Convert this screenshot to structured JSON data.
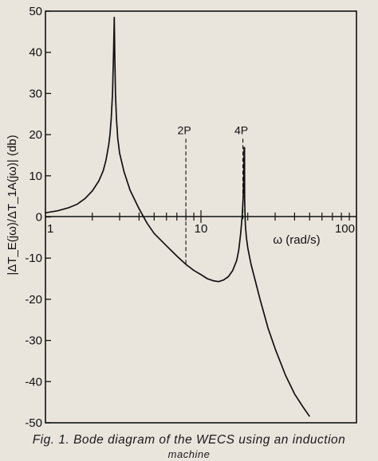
{
  "chart_data": {
    "type": "line",
    "title": "",
    "xlabel": "ω (rad/s)",
    "ylabel": "|ΔT_E(jω)/ΔT_1A(jω)| (db)",
    "xscale": "log",
    "xlim": [
      1,
      100
    ],
    "ylim": [
      -50,
      50
    ],
    "xtick_labels": [
      "1",
      "10",
      "100"
    ],
    "ytick_labels": [
      "50",
      "40",
      "30",
      "20",
      "10",
      "0",
      "-10",
      "-20",
      "-30",
      "-40",
      "-50"
    ],
    "annotations": [
      {
        "label": "2P",
        "x": 8,
        "y_from": 19,
        "y_to": -12
      },
      {
        "label": "4P",
        "x": 18.6,
        "y_from": 19,
        "y_to": -1
      }
    ],
    "series": [
      {
        "name": "",
        "segments": [
          [
            [
              1,
              1
            ],
            [
              1.2,
              1.5
            ],
            [
              1.4,
              2.2
            ],
            [
              1.6,
              3.1
            ],
            [
              1.8,
              4.5
            ],
            [
              2.0,
              6.3
            ],
            [
              2.2,
              8.7
            ],
            [
              2.35,
              11.2
            ],
            [
              2.45,
              13.8
            ],
            [
              2.55,
              17.5
            ],
            [
              2.6,
              20
            ],
            [
              2.65,
              24
            ],
            [
              2.7,
              30
            ],
            [
              2.74,
              40
            ],
            [
              2.77,
              48.5
            ],
            [
              2.79,
              40
            ],
            [
              2.82,
              30
            ],
            [
              2.86,
              24
            ],
            [
              2.92,
              19
            ],
            [
              3.0,
              15.5
            ],
            [
              3.2,
              11
            ],
            [
              3.5,
              6.5
            ],
            [
              4.0,
              2
            ],
            [
              4.5,
              -1.5
            ],
            [
              5.0,
              -4
            ],
            [
              6.0,
              -7
            ],
            [
              7.0,
              -9.5
            ],
            [
              8.0,
              -11.5
            ],
            [
              9.0,
              -13
            ],
            [
              10.0,
              -14
            ],
            [
              11.0,
              -15
            ],
            [
              12.0,
              -15.5
            ],
            [
              13.0,
              -15.7
            ],
            [
              14.0,
              -15.3
            ],
            [
              15.0,
              -14.5
            ],
            [
              16.0,
              -13
            ],
            [
              17.0,
              -10.5
            ],
            [
              17.5,
              -8
            ],
            [
              18.0,
              -4
            ],
            [
              18.4,
              0
            ],
            [
              18.7,
              5
            ],
            [
              18.85,
              10
            ],
            [
              18.95,
              17
            ]
          ],
          [
            [
              19.05,
              17
            ],
            [
              19.1,
              4
            ],
            [
              19.3,
              -2
            ],
            [
              19.6,
              -5
            ],
            [
              20.0,
              -7.5
            ],
            [
              21.0,
              -11.5
            ],
            [
              22.0,
              -14.5
            ],
            [
              24.0,
              -20
            ],
            [
              27.0,
              -27
            ],
            [
              30.0,
              -32
            ],
            [
              35.0,
              -38.5
            ],
            [
              40.0,
              -43
            ],
            [
              45.0,
              -46
            ],
            [
              50.0,
              -48.5
            ]
          ]
        ]
      }
    ],
    "grid": false,
    "legend": "none"
  },
  "caption": {
    "line1": "Fig. 1. Bode diagram of the WECS using an induction",
    "line2": "machine"
  }
}
